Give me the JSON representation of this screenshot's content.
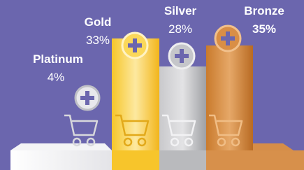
{
  "tiers": [
    {
      "name": "Platinum",
      "share": "4%"
    },
    {
      "name": "Gold",
      "share": "33%"
    },
    {
      "name": "Silver",
      "share": "28%"
    },
    {
      "name": "Bronze",
      "share": "35%"
    }
  ]
}
